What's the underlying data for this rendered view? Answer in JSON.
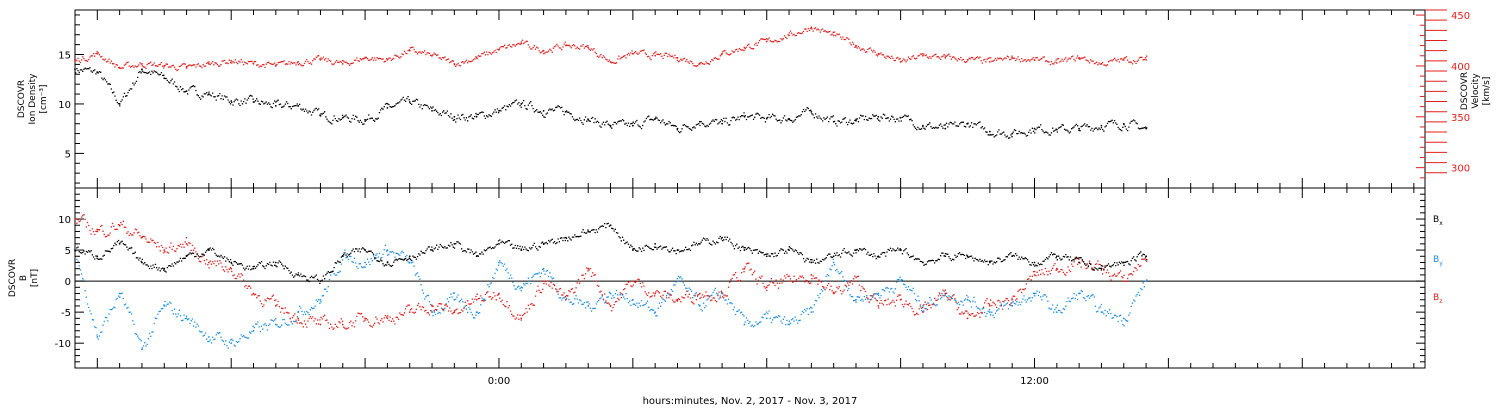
{
  "chart_data": [
    {
      "type": "line",
      "panel": "plasma",
      "ylabel_lines": [
        "DSCOVR",
        "Ion Density",
        "[cm⁻³]"
      ],
      "ylim": [
        1.5,
        19.5
      ],
      "yticks": [
        5,
        10,
        15
      ],
      "y2label_lines": [
        "DSCOVR",
        "Velocity",
        "[km/s]"
      ],
      "y2lim": [
        280,
        455
      ],
      "y2ticks": [
        300,
        350,
        400,
        450
      ],
      "x_range_hours": [
        -9.5,
        20.75
      ],
      "data_end_hour": 14.5,
      "series": [
        {
          "axis": "left",
          "color": "#000000",
          "x": [
            -9.5,
            -9,
            -8.5,
            -8,
            -7.5,
            -7,
            -6.5,
            -6,
            -5.5,
            -5,
            -4.5,
            -4,
            -3.5,
            -3,
            -2.5,
            -2,
            -1.5,
            -1,
            -0.5,
            0,
            0.5,
            1,
            1.5,
            2,
            2.5,
            3,
            3.5,
            4,
            4.5,
            5,
            5.5,
            6,
            6.5,
            7,
            7.5,
            8,
            8.5,
            9,
            9.5,
            10,
            10.5,
            11,
            11.5,
            12,
            12.5,
            13,
            13.5,
            14,
            14.5
          ],
          "values": [
            13.5,
            13.2,
            10,
            13.5,
            12.6,
            11.3,
            11,
            10.3,
            10.2,
            9.8,
            9.8,
            8.8,
            8.6,
            8.4,
            9.6,
            10.2,
            9.3,
            8.7,
            8.7,
            9.3,
            10,
            9.3,
            9.2,
            8.4,
            7.8,
            7.8,
            8.5,
            7.5,
            8.2,
            8,
            8.7,
            8.5,
            8.5,
            9.2,
            8.2,
            8.3,
            8.7,
            8.6,
            7.8,
            7.5,
            8,
            7.2,
            7,
            7.5,
            7.4,
            7.5,
            7.8,
            8,
            7.5
          ]
        },
        {
          "axis": "right",
          "color": "#e0201e",
          "x": [
            -9.5,
            -9,
            -8.5,
            -8,
            -7.5,
            -7,
            -6.5,
            -6,
            -5.5,
            -5,
            -4.5,
            -4,
            -3.5,
            -3,
            -2.5,
            -2,
            -1.5,
            -1,
            -0.5,
            0,
            0.5,
            1,
            1.5,
            2,
            2.5,
            3,
            3.5,
            4,
            4.5,
            5,
            5.5,
            6,
            6.5,
            7,
            7.5,
            8,
            8.5,
            9,
            9.5,
            10,
            10.5,
            11,
            11.5,
            12,
            12.5,
            13,
            13.5,
            14,
            14.5
          ],
          "values": [
            405,
            412,
            398,
            402,
            400,
            398,
            402,
            405,
            402,
            400,
            404,
            406,
            402,
            408,
            406,
            415,
            410,
            402,
            408,
            416,
            422,
            415,
            420,
            418,
            404,
            412,
            410,
            408,
            402,
            412,
            418,
            424,
            430,
            438,
            430,
            420,
            412,
            404,
            410,
            408,
            406,
            404,
            408,
            406,
            403,
            408,
            402,
            406,
            406
          ]
        }
      ]
    },
    {
      "type": "line",
      "panel": "magnetic-field",
      "ylabel_lines": [
        "DSCOVR",
        "B",
        "[nT]"
      ],
      "ylim": [
        -14,
        15
      ],
      "yticks": [
        -10,
        -5,
        0,
        5,
        10
      ],
      "zero_line": true,
      "xlabel": "hours:minutes, Nov.  2, 2017 - Nov.  3, 2017",
      "x_range_hours": [
        -9.5,
        20.75
      ],
      "xticks": [
        {
          "hour": 0,
          "label": "0:00"
        },
        {
          "hour": 12,
          "label": "12:00"
        }
      ],
      "series": [
        {
          "name": "B",
          "subscript": "x",
          "color": "#000000",
          "x": [
            -9.5,
            -9,
            -8.5,
            -8,
            -7.5,
            -7,
            -6.5,
            -6,
            -5.5,
            -5,
            -4.5,
            -4,
            -3.5,
            -3,
            -2.5,
            -2,
            -1.5,
            -1,
            -0.5,
            0,
            0.5,
            1,
            1.5,
            2,
            2.5,
            3,
            3.5,
            4,
            4.5,
            5,
            5.5,
            6,
            6.5,
            7,
            7.5,
            8,
            8.5,
            9,
            9.5,
            10,
            10.5,
            11,
            11.5,
            12,
            12.5,
            13,
            13.5,
            14,
            14.5
          ],
          "values": [
            5,
            4,
            6,
            3,
            2,
            4,
            5,
            3,
            2,
            3,
            1,
            0,
            4,
            5,
            3,
            4,
            5,
            6,
            4,
            6,
            5,
            6,
            7,
            8,
            9,
            5,
            6,
            5,
            6,
            7,
            5,
            4,
            5,
            3,
            4,
            5,
            4,
            5,
            3,
            4,
            4,
            3,
            4,
            3,
            4,
            3,
            2,
            3,
            4
          ]
        },
        {
          "name": "B",
          "subscript": "y",
          "color": "#1f8fe0",
          "x": [
            -9.5,
            -9,
            -8.5,
            -8,
            -7.5,
            -7,
            -6.5,
            -6,
            -5.5,
            -5,
            -4.5,
            -4,
            -3.5,
            -3,
            -2.5,
            -2,
            -1.5,
            -1,
            -0.5,
            0,
            0.5,
            1,
            1.5,
            2,
            2.5,
            3,
            3.5,
            4,
            4.5,
            5,
            5.5,
            6,
            6.5,
            7,
            7.5,
            8,
            8.5,
            9,
            9.5,
            10,
            10.5,
            11,
            11.5,
            12,
            12.5,
            13,
            13.5,
            14,
            14.5
          ],
          "values": [
            5,
            -9,
            -2,
            -11,
            -4,
            -6,
            -9,
            -10,
            -8,
            -7,
            -5,
            -3,
            4,
            3,
            5,
            3,
            -5,
            -3,
            -5,
            3,
            -1,
            2,
            -3,
            -4,
            -2,
            -3,
            -5,
            0,
            -4,
            -2,
            -7,
            -6,
            -7,
            -5,
            3,
            -3,
            -2,
            0,
            -4,
            -2,
            -3,
            -5,
            -4,
            -2,
            -5,
            -2,
            -5,
            -6,
            0
          ]
        },
        {
          "name": "B",
          "subscript": "z",
          "color": "#e0201e",
          "x": [
            -9.5,
            -9,
            -8.5,
            -8,
            -7.5,
            -7,
            -6.5,
            -6,
            -5.5,
            -5,
            -4.5,
            -4,
            -3.5,
            -3,
            -2.5,
            -2,
            -1.5,
            -1,
            -0.5,
            0,
            0.5,
            1,
            1.5,
            2,
            2.5,
            3,
            3.5,
            4,
            4.5,
            5,
            5.5,
            6,
            6.5,
            7,
            7.5,
            8,
            8.5,
            9,
            9.5,
            10,
            10.5,
            11,
            11.5,
            12,
            12.5,
            13,
            13.5,
            14,
            14.5
          ],
          "values": [
            10,
            8,
            9,
            7,
            5,
            6,
            3,
            2,
            -2,
            -4,
            -6,
            -7,
            -7,
            -6,
            -6,
            -5,
            -4,
            -5,
            -3,
            -2,
            -6,
            0,
            -3,
            2,
            -4,
            0,
            -2,
            -3,
            -2,
            -2,
            2,
            -1,
            0,
            1,
            -2,
            0,
            -4,
            -3,
            -5,
            -2,
            -6,
            -4,
            -3,
            1,
            2,
            3,
            2,
            0,
            4
          ]
        }
      ]
    }
  ]
}
